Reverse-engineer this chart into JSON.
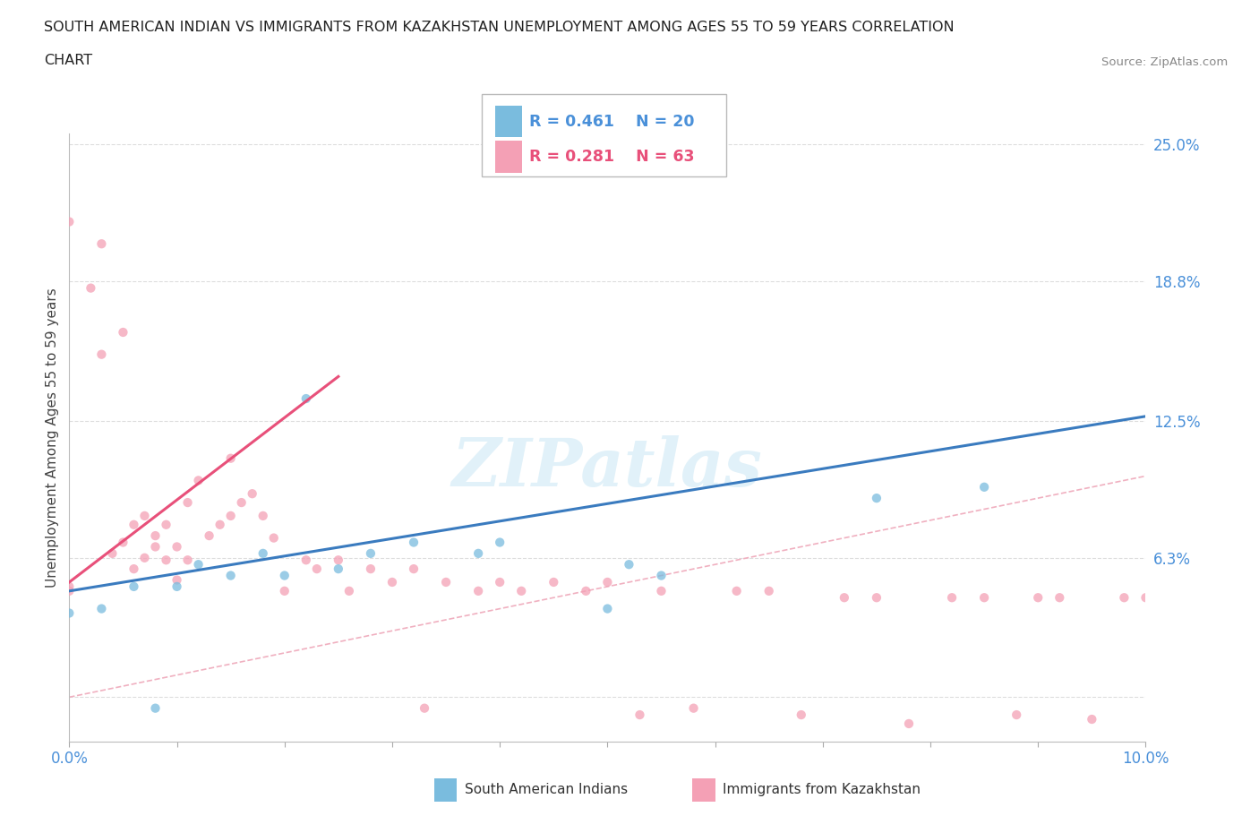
{
  "title_line1": "SOUTH AMERICAN INDIAN VS IMMIGRANTS FROM KAZAKHSTAN UNEMPLOYMENT AMONG AGES 55 TO 59 YEARS CORRELATION",
  "title_line2": "CHART",
  "source": "Source: ZipAtlas.com",
  "ylabel": "Unemployment Among Ages 55 to 59 years",
  "xlim": [
    0.0,
    0.1
  ],
  "ylim": [
    -0.02,
    0.255
  ],
  "yticks": [
    0.0,
    0.063,
    0.125,
    0.188,
    0.25
  ],
  "ytick_labels": [
    "",
    "6.3%",
    "12.5%",
    "18.8%",
    "25.0%"
  ],
  "xticks": [
    0.0,
    0.01,
    0.02,
    0.03,
    0.04,
    0.05,
    0.06,
    0.07,
    0.08,
    0.09,
    0.1
  ],
  "xtick_labels": [
    "0.0%",
    "",
    "",
    "",
    "",
    "",
    "",
    "",
    "",
    "",
    "10.0%"
  ],
  "color_blue": "#7abcde",
  "color_pink": "#f4a0b5",
  "color_blue_line": "#3a7bbf",
  "color_pink_line": "#e8507a",
  "legend_R_blue": "R = 0.461",
  "legend_N_blue": "N = 20",
  "legend_R_pink": "R = 0.281",
  "legend_N_pink": "N = 63",
  "legend_label_blue": "South American Indians",
  "legend_label_pink": "Immigrants from Kazakhstan",
  "watermark": "ZIPatlas",
  "blue_scatter_x": [
    0.0,
    0.003,
    0.006,
    0.008,
    0.01,
    0.012,
    0.015,
    0.018,
    0.02,
    0.022,
    0.025,
    0.028,
    0.032,
    0.038,
    0.04,
    0.05,
    0.052,
    0.055,
    0.075,
    0.085
  ],
  "blue_scatter_y": [
    0.038,
    0.04,
    0.05,
    -0.005,
    0.05,
    0.06,
    0.055,
    0.065,
    0.055,
    0.135,
    0.058,
    0.065,
    0.07,
    0.065,
    0.07,
    0.04,
    0.06,
    0.055,
    0.09,
    0.095
  ],
  "pink_scatter_x": [
    0.0,
    0.0,
    0.0,
    0.002,
    0.003,
    0.003,
    0.004,
    0.005,
    0.005,
    0.006,
    0.006,
    0.007,
    0.007,
    0.008,
    0.008,
    0.009,
    0.009,
    0.01,
    0.01,
    0.011,
    0.011,
    0.012,
    0.013,
    0.014,
    0.015,
    0.015,
    0.016,
    0.017,
    0.018,
    0.019,
    0.02,
    0.022,
    0.023,
    0.025,
    0.026,
    0.028,
    0.03,
    0.032,
    0.033,
    0.035,
    0.038,
    0.04,
    0.042,
    0.045,
    0.048,
    0.05,
    0.053,
    0.055,
    0.058,
    0.062,
    0.065,
    0.068,
    0.072,
    0.075,
    0.078,
    0.082,
    0.085,
    0.088,
    0.09,
    0.092,
    0.095,
    0.098,
    0.1
  ],
  "pink_scatter_y": [
    0.048,
    0.05,
    0.215,
    0.185,
    0.155,
    0.205,
    0.065,
    0.07,
    0.165,
    0.058,
    0.078,
    0.063,
    0.082,
    0.068,
    0.073,
    0.062,
    0.078,
    0.053,
    0.068,
    0.062,
    0.088,
    0.098,
    0.073,
    0.078,
    0.082,
    0.108,
    0.088,
    0.092,
    0.082,
    0.072,
    0.048,
    0.062,
    0.058,
    0.062,
    0.048,
    0.058,
    0.052,
    0.058,
    -0.005,
    0.052,
    0.048,
    0.052,
    0.048,
    0.052,
    0.048,
    0.052,
    -0.008,
    0.048,
    -0.005,
    0.048,
    0.048,
    -0.008,
    0.045,
    0.045,
    -0.012,
    0.045,
    0.045,
    -0.008,
    0.045,
    0.045,
    -0.01,
    0.045,
    0.045
  ],
  "blue_line_x": [
    0.0,
    0.1
  ],
  "blue_line_y": [
    0.048,
    0.127
  ],
  "pink_line_x": [
    0.0,
    0.025
  ],
  "pink_line_y": [
    0.052,
    0.145
  ],
  "diag_line_color": "#f0b0c0",
  "background_color": "#ffffff",
  "grid_color": "#dddddd"
}
